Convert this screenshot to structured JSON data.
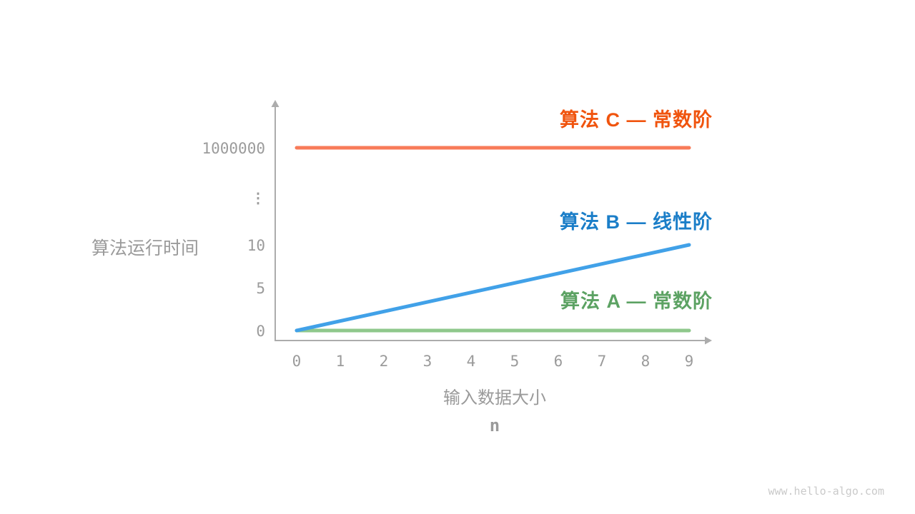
{
  "page": {
    "watermark": "www.hello-algo.com"
  },
  "chart_data": {
    "type": "line",
    "title": "",
    "ylabel": "算法运行时间",
    "xlabel": "输入数据大小",
    "xlabel_var": "n",
    "x_ticks": [
      0,
      1,
      2,
      3,
      4,
      5,
      6,
      7,
      8,
      9
    ],
    "y_ticks": [
      {
        "label": "0",
        "value": 0
      },
      {
        "label": "5",
        "value": 5
      },
      {
        "label": "10",
        "value": 10
      },
      {
        "label": "⋮",
        "value": null
      },
      {
        "label": "1000000",
        "value": 1000000
      }
    ],
    "y_axis_break": true,
    "xlim": [
      0,
      9
    ],
    "grid": false,
    "legend_position": "right-of-each-line",
    "axis_color": "#ACACAC",
    "tick_color": "#9B9B9B",
    "series": [
      {
        "name": "算法 C — 常数阶",
        "complexity": "constant",
        "x": [
          0,
          9
        ],
        "y": [
          1000000,
          1000000
        ],
        "line_color": "#F87B59",
        "label_color": "#F0540E"
      },
      {
        "name": "算法 B — 线性阶",
        "complexity": "linear",
        "x": [
          0,
          9
        ],
        "y": [
          0,
          10
        ],
        "line_color": "#41A1E8",
        "label_color": "#1B7EC8"
      },
      {
        "name": "算法 A — 常数阶",
        "complexity": "constant",
        "x": [
          0,
          9
        ],
        "y": [
          0,
          0
        ],
        "line_color": "#8FC88C",
        "label_color": "#5CA263"
      }
    ]
  }
}
